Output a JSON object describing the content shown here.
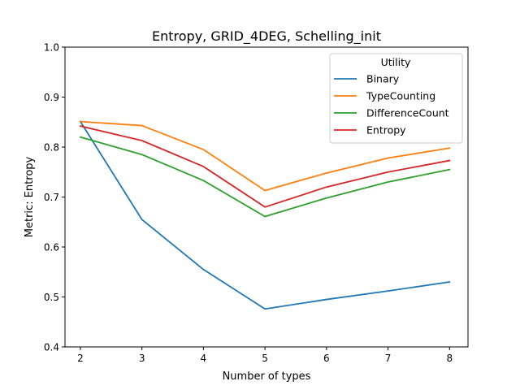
{
  "chart_data": {
    "type": "line",
    "title": "Entropy, GRID_4DEG, Schelling_init",
    "xlabel": "Number of types",
    "ylabel": "Metric: Entropy",
    "x": [
      2,
      3,
      4,
      5,
      6,
      7,
      8
    ],
    "xlim": [
      1.75,
      8.3
    ],
    "ylim": [
      0.4,
      1.0
    ],
    "xticks": [
      "2",
      "3",
      "4",
      "5",
      "6",
      "7",
      "8"
    ],
    "yticks": [
      "0.4",
      "0.5",
      "0.6",
      "0.7",
      "0.8",
      "0.9",
      "1.0"
    ],
    "grid": false,
    "legend": {
      "title": "Utility",
      "placement": "top-right"
    },
    "series": [
      {
        "name": "Binary",
        "color": "#1f77b4",
        "values": [
          0.851,
          0.655,
          0.555,
          0.476,
          0.495,
          0.512,
          0.53
        ]
      },
      {
        "name": "TypeCounting",
        "color": "#ff7f0e",
        "values": [
          0.851,
          0.843,
          0.795,
          0.713,
          0.748,
          0.778,
          0.798
        ]
      },
      {
        "name": "DifferenceCount",
        "color": "#2ca02c",
        "values": [
          0.82,
          0.785,
          0.733,
          0.661,
          0.698,
          0.73,
          0.755
        ]
      },
      {
        "name": "Entropy",
        "color": "#d62728",
        "values": [
          0.842,
          0.813,
          0.761,
          0.68,
          0.72,
          0.75,
          0.773
        ]
      }
    ]
  }
}
